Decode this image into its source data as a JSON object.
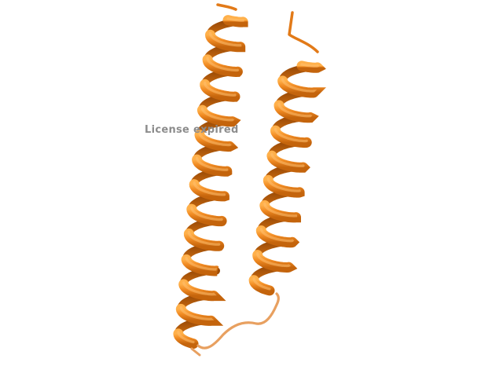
{
  "watermark": {
    "text": "License expired"
  },
  "colors": {
    "background": "#ffffff",
    "helix_light": "#f08a22",
    "helix_dark": "#b85a08",
    "helix_mid": "#e27a18",
    "loop": "#e8a060",
    "watermark": "#8c8c8c"
  }
}
